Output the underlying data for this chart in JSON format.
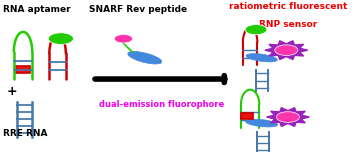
{
  "bg_color": "#ffffff",
  "text_rna_aptamer": "RNA aptamer",
  "text_rre_rna": "RRE RNA",
  "text_snarf": "SNARF Rev peptide",
  "text_dual": "dual-emission fluorophore",
  "text_ratio1": "ratiometric fluorescent",
  "text_ratio2": "RNP sensor",
  "arrow_color": "#000000",
  "dual_color": "#ee00ee",
  "ratio_color": "#ee0000",
  "green_color": "#22cc00",
  "red_color": "#cc0000",
  "red_fill": "#ee1111",
  "blue_color": "#4488dd",
  "teal_color": "#4477aa",
  "purple_color": "#9922bb",
  "pink_color": "#ff33aa",
  "white": "#ffffff"
}
